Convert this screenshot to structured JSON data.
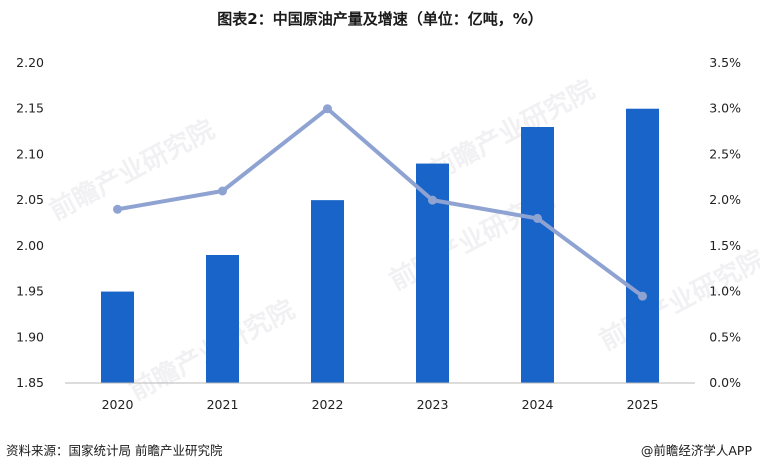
{
  "title": "图表2：中国原油产量及增速（单位：亿吨，%）",
  "source": "资料来源：国家统计局  前瞻产业研究院",
  "brand": "@前瞻经济学人APP",
  "watermark": "前瞻产业研究院",
  "colors": {
    "bar": "#1864c8",
    "line": "#8fa3d3",
    "axis": "#b9b9b9"
  },
  "chart_data": {
    "type": "bar",
    "categories": [
      "2020",
      "2021",
      "2022",
      "2023",
      "2024",
      "2025"
    ],
    "series": [
      {
        "type": "bar",
        "axis": "left",
        "values": [
          1.95,
          1.99,
          2.05,
          2.09,
          2.13,
          2.15
        ]
      },
      {
        "type": "line",
        "axis": "right",
        "values": [
          1.9,
          2.1,
          3.0,
          2.0,
          1.8,
          0.95
        ]
      }
    ],
    "y_left": {
      "lim": [
        1.85,
        2.2
      ],
      "ticks": [
        "2.20",
        "2.15",
        "2.10",
        "2.05",
        "2.00",
        "1.95",
        "1.90",
        "1.85"
      ]
    },
    "y_right": {
      "lim": [
        0,
        3.5
      ],
      "ticks": [
        "3.5%",
        "3.0%",
        "2.5%",
        "2.0%",
        "1.5%",
        "1.0%",
        "0.5%",
        "0.0%"
      ]
    },
    "grid": false,
    "legend": "none"
  }
}
